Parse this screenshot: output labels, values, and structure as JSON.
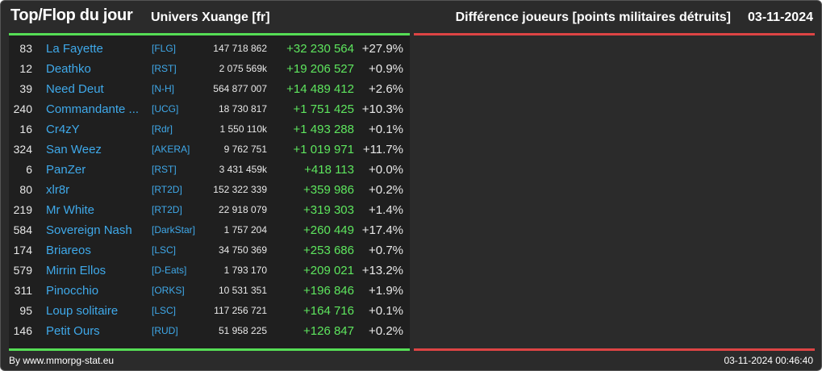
{
  "header": {
    "title": "Top/Flop du jour",
    "universe": "Univers Xuange [fr]",
    "metric": "Différence joueurs [points militaires détruits]",
    "date": "03-11-2024"
  },
  "top_rows": [
    {
      "rank": "83",
      "name": "La Fayette",
      "alliance": "[FLG]",
      "points": "147 718 862",
      "diff": "+32 230 564",
      "pct": "+27.9%"
    },
    {
      "rank": "12",
      "name": "Deathko",
      "alliance": "[RST]",
      "points": "2 075 569k",
      "diff": "+19 206 527",
      "pct": "+0.9%"
    },
    {
      "rank": "39",
      "name": "Need Deut",
      "alliance": "[N-H]",
      "points": "564 877 007",
      "diff": "+14 489 412",
      "pct": "+2.6%"
    },
    {
      "rank": "240",
      "name": "Commandante ...",
      "alliance": "[UCG]",
      "points": "18 730 817",
      "diff": "+1 751 425",
      "pct": "+10.3%"
    },
    {
      "rank": "16",
      "name": "Cr4zY",
      "alliance": "[Rdr]",
      "points": "1 550 110k",
      "diff": "+1 493 288",
      "pct": "+0.1%"
    },
    {
      "rank": "324",
      "name": "San Weez",
      "alliance": "[AKERA]",
      "points": "9 762 751",
      "diff": "+1 019 971",
      "pct": "+11.7%"
    },
    {
      "rank": "6",
      "name": "PanZer",
      "alliance": "[RST]",
      "points": "3 431 459k",
      "diff": "+418 113",
      "pct": "+0.0%"
    },
    {
      "rank": "80",
      "name": "xlr8r",
      "alliance": "[RT2D]",
      "points": "152 322 339",
      "diff": "+359 986",
      "pct": "+0.2%"
    },
    {
      "rank": "219",
      "name": "Mr White",
      "alliance": "[RT2D]",
      "points": "22 918 079",
      "diff": "+319 303",
      "pct": "+1.4%"
    },
    {
      "rank": "584",
      "name": "Sovereign Nash",
      "alliance": "[DarkStar]",
      "points": "1 757 204",
      "diff": "+260 449",
      "pct": "+17.4%"
    },
    {
      "rank": "174",
      "name": "Briareos",
      "alliance": "[LSC]",
      "points": "34 750 369",
      "diff": "+253 686",
      "pct": "+0.7%"
    },
    {
      "rank": "579",
      "name": "Mirrin Ellos",
      "alliance": "[D-Eats]",
      "points": "1 793 170",
      "diff": "+209 021",
      "pct": "+13.2%"
    },
    {
      "rank": "311",
      "name": "Pinocchio",
      "alliance": "[ORKS]",
      "points": "10 531 351",
      "diff": "+196 846",
      "pct": "+1.9%"
    },
    {
      "rank": "95",
      "name": "Loup solitaire",
      "alliance": "[LSC]",
      "points": "117 256 721",
      "diff": "+164 716",
      "pct": "+0.1%"
    },
    {
      "rank": "146",
      "name": "Petit Ours",
      "alliance": "[RUD]",
      "points": "51 958 225",
      "diff": "+126 847",
      "pct": "+0.2%"
    }
  ],
  "footer": {
    "credit": "By www.mmorpg-stat.eu",
    "timestamp": "03-11-2024 00:46:40"
  },
  "colors": {
    "top_accent": "#55dd55",
    "flop_accent": "#dd4444",
    "link": "#3fa9ea",
    "positive": "#5ee65e"
  }
}
